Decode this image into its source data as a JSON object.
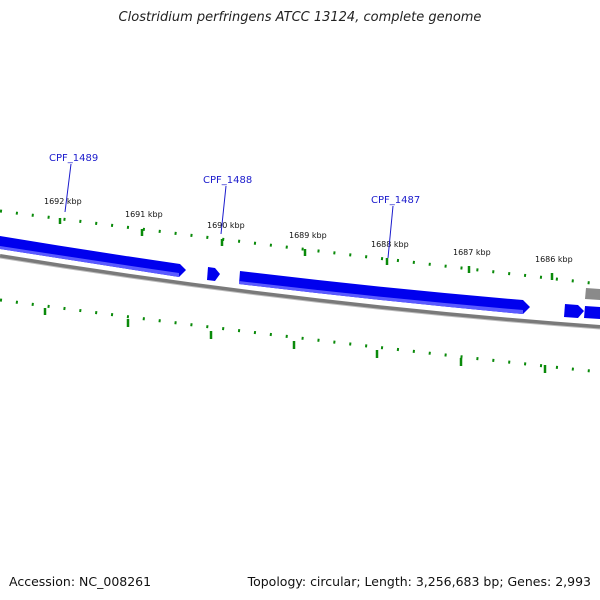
{
  "title": "Clostridium perfringens ATCC 13124, complete genome",
  "footer": {
    "accession_label": "Accession:",
    "accession": "NC_008261",
    "topology_label": "Topology:",
    "topology": "circular",
    "length_label": "Length:",
    "length": "3,256,683 bp",
    "genes_label": "Genes:",
    "genes": "2,993"
  },
  "tick_labels": [
    "1692 kbp",
    "1691 kbp",
    "1690 kbp",
    "1689 kbp",
    "1688 kbp",
    "1687 kbp",
    "1686 kbp"
  ],
  "genes": [
    {
      "label": "CPF_1489"
    },
    {
      "label": "CPF_1488"
    },
    {
      "label": "CPF_1487"
    }
  ],
  "colors": {
    "gene_fill": "#0000ee",
    "gene_highlight": "#5a5aff",
    "backbone": "#7a7a7a",
    "ticks": "#0a8a0a",
    "gene_label": "#1a1acc",
    "other_feature": "#8a8a8a"
  }
}
